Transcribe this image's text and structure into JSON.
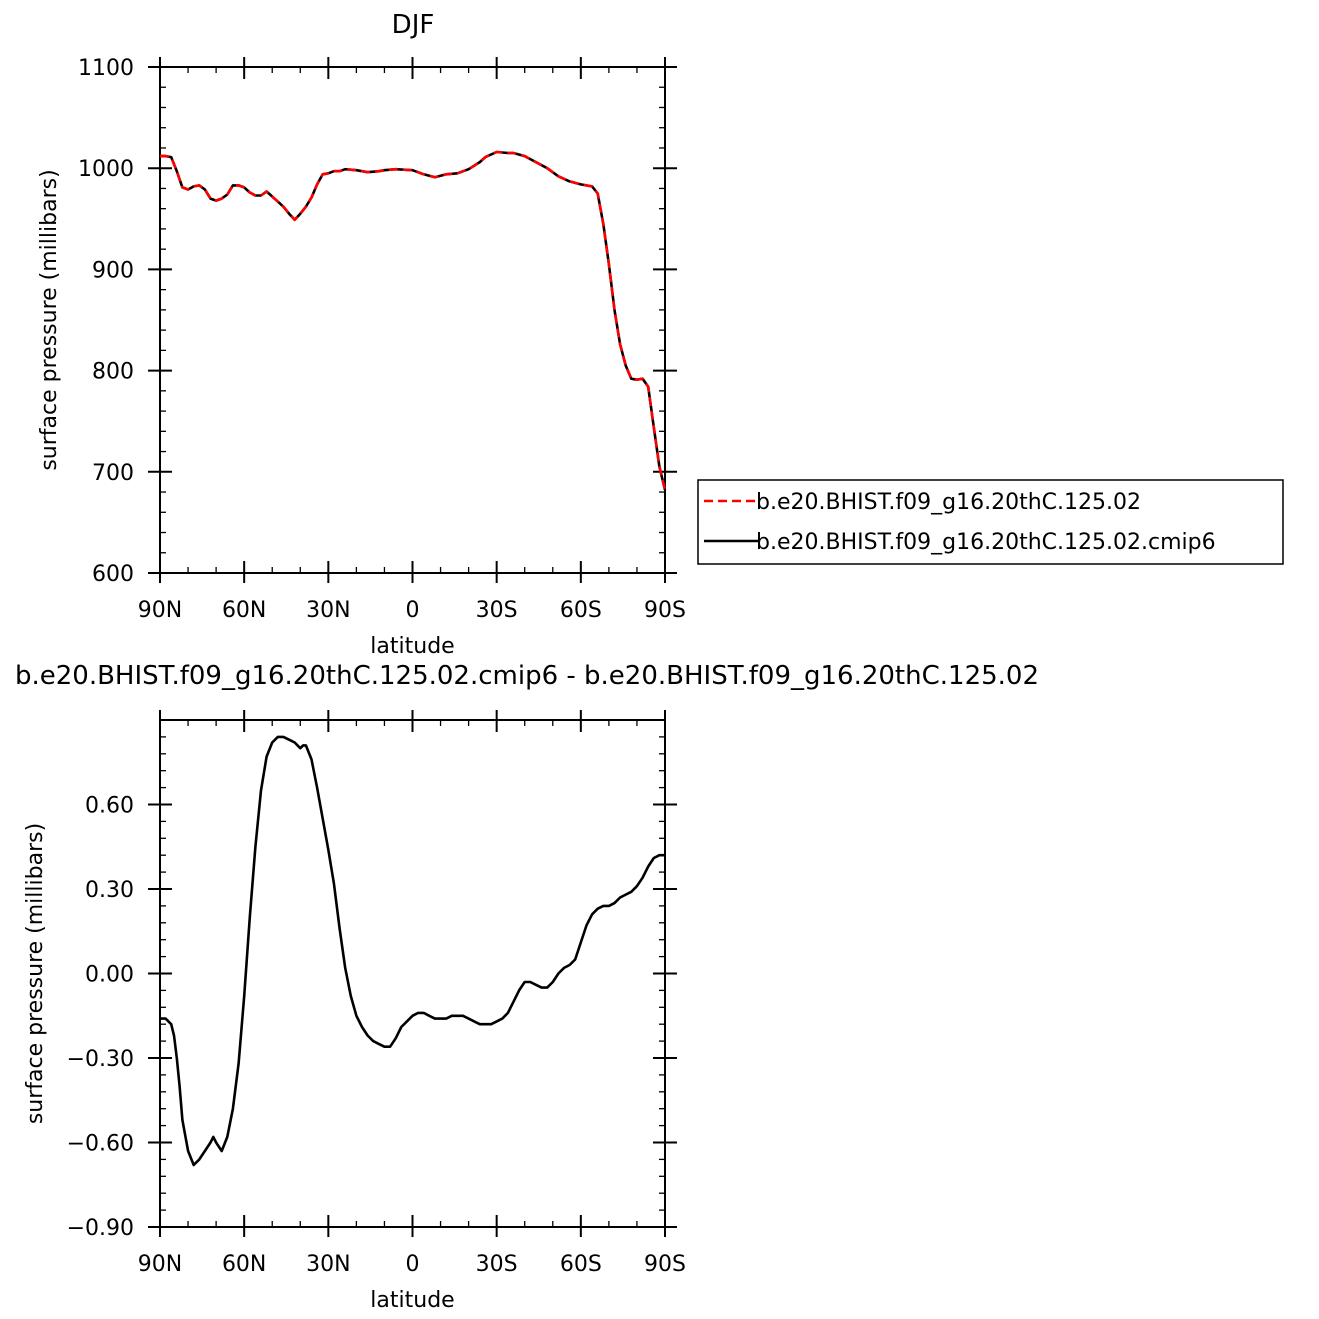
{
  "chart_data": [
    {
      "type": "line",
      "title": "DJF",
      "xlabel": "latitude",
      "ylabel": "surface pressure (millibars)",
      "xlim": [
        90,
        -90
      ],
      "ylim": [
        600,
        1100
      ],
      "xticks": [
        90,
        60,
        30,
        0,
        -30,
        -60,
        -90
      ],
      "xtick_labels": [
        "90N",
        "60N",
        "30N",
        "0",
        "30S",
        "60S",
        "90S"
      ],
      "yticks": [
        600,
        700,
        800,
        900,
        1000,
        1100
      ],
      "ytick_labels": [
        "600",
        "700",
        "800",
        "900",
        "1000",
        "1100"
      ],
      "legend_position": "right",
      "series": [
        {
          "name": "b.e20.BHIST.f09_g16.20thC.125.02",
          "color": "#ff0000",
          "dash": "dashed",
          "x": [
            90,
            88,
            86,
            84,
            82,
            80,
            78,
            76,
            74,
            72,
            70,
            68,
            66,
            64,
            62,
            60,
            58,
            56,
            54,
            52,
            50,
            48,
            46,
            44,
            42,
            40,
            38,
            36,
            34,
            32,
            30,
            28,
            26,
            24,
            20,
            16,
            12,
            10,
            6,
            0,
            -4,
            -8,
            -12,
            -16,
            -20,
            -24,
            -26,
            -30,
            -34,
            -36,
            -40,
            -44,
            -48,
            -52,
            -56,
            -60,
            -64,
            -66,
            -68,
            -70,
            -72,
            -74,
            -76,
            -78,
            -80,
            -82,
            -84,
            -86,
            -88,
            -90
          ],
          "y": [
            1012,
            1012,
            1011,
            997,
            981,
            979,
            982,
            983,
            979,
            970,
            968,
            970,
            974,
            983,
            983,
            981,
            976,
            973,
            973,
            977,
            972,
            967,
            962,
            955,
            949,
            955,
            962,
            971,
            984,
            994,
            995,
            997,
            997,
            999,
            998,
            996,
            997,
            998,
            999,
            998,
            994,
            991,
            994,
            995,
            999,
            1006,
            1011,
            1016,
            1015,
            1015,
            1012,
            1006,
            1000,
            992,
            987,
            984,
            982,
            975,
            945,
            905,
            860,
            826,
            805,
            792,
            791,
            792,
            784,
            744,
            705,
            682
          ]
        },
        {
          "name": "b.e20.BHIST.f09_g16.20thC.125.02.cmip6",
          "color": "#000000",
          "dash": "solid",
          "x": [
            90,
            88,
            86,
            84,
            82,
            80,
            78,
            76,
            74,
            72,
            70,
            68,
            66,
            64,
            62,
            60,
            58,
            56,
            54,
            52,
            50,
            48,
            46,
            44,
            42,
            40,
            38,
            36,
            34,
            32,
            30,
            28,
            26,
            24,
            20,
            16,
            12,
            10,
            6,
            0,
            -4,
            -8,
            -12,
            -16,
            -20,
            -24,
            -26,
            -30,
            -34,
            -36,
            -40,
            -44,
            -48,
            -52,
            -56,
            -60,
            -64,
            -66,
            -68,
            -70,
            -72,
            -74,
            -76,
            -78,
            -80,
            -82,
            -84,
            -86,
            -88,
            -90
          ],
          "y": [
            1012,
            1012,
            1011,
            997,
            981,
            979,
            982,
            983,
            979,
            970,
            968,
            970,
            974,
            983,
            983,
            981,
            976,
            973,
            973,
            977,
            972,
            967,
            962,
            955,
            949,
            955,
            962,
            971,
            984,
            994,
            995,
            997,
            997,
            999,
            998,
            996,
            997,
            998,
            999,
            998,
            994,
            991,
            994,
            995,
            999,
            1006,
            1011,
            1016,
            1015,
            1015,
            1012,
            1006,
            1000,
            992,
            987,
            984,
            982,
            975,
            945,
            905,
            860,
            826,
            805,
            792,
            791,
            792,
            784,
            744,
            705,
            682
          ]
        }
      ]
    },
    {
      "type": "line",
      "title": "b.e20.BHIST.f09_g16.20thC.125.02.cmip6 - b.e20.BHIST.f09_g16.20thC.125.02",
      "xlabel": "latitude",
      "ylabel": "surface pressure (millibars)",
      "xlim": [
        90,
        -90
      ],
      "ylim": [
        -0.9,
        0.9
      ],
      "xticks": [
        90,
        60,
        30,
        0,
        -30,
        -60,
        -90
      ],
      "xtick_labels": [
        "90N",
        "60N",
        "30N",
        "0",
        "30S",
        "60S",
        "90S"
      ],
      "yticks": [
        -0.9,
        -0.6,
        -0.3,
        0.0,
        0.3,
        0.6
      ],
      "ytick_labels": [
        "-0.90",
        "-0.60",
        "-0.30",
        "0.00",
        "0.30",
        "0.60"
      ],
      "series": [
        {
          "color": "#000000",
          "dash": "solid",
          "x": [
            90,
            88,
            86,
            85,
            84,
            83,
            82,
            80,
            78,
            76,
            74,
            72,
            71,
            70,
            68,
            66,
            64,
            62,
            60,
            58,
            56,
            54,
            52,
            50,
            48,
            46,
            44,
            42,
            40,
            39,
            38,
            36,
            34,
            32,
            30,
            28,
            26,
            24,
            22,
            20,
            18,
            16,
            14,
            12,
            10,
            8,
            6,
            4,
            2,
            0,
            -2,
            -4,
            -6,
            -8,
            -10,
            -12,
            -14,
            -16,
            -18,
            -20,
            -22,
            -24,
            -26,
            -28,
            -30,
            -32,
            -34,
            -36,
            -38,
            -40,
            -42,
            -44,
            -46,
            -48,
            -50,
            -52,
            -54,
            -56,
            -58,
            -60,
            -62,
            -64,
            -66,
            -68,
            -70,
            -72,
            -74,
            -76,
            -78,
            -80,
            -82,
            -84,
            -86,
            -88,
            -90
          ],
          "y": [
            -0.16,
            -0.16,
            -0.18,
            -0.22,
            -0.3,
            -0.4,
            -0.52,
            -0.63,
            -0.68,
            -0.66,
            -0.63,
            -0.6,
            -0.58,
            -0.6,
            -0.63,
            -0.58,
            -0.48,
            -0.32,
            -0.08,
            0.2,
            0.45,
            0.65,
            0.77,
            0.82,
            0.84,
            0.84,
            0.83,
            0.82,
            0.8,
            0.81,
            0.81,
            0.76,
            0.66,
            0.55,
            0.44,
            0.32,
            0.16,
            0.02,
            -0.08,
            -0.15,
            -0.19,
            -0.22,
            -0.24,
            -0.25,
            -0.26,
            -0.26,
            -0.23,
            -0.19,
            -0.17,
            -0.15,
            -0.14,
            -0.14,
            -0.15,
            -0.16,
            -0.16,
            -0.16,
            -0.15,
            -0.15,
            -0.15,
            -0.16,
            -0.17,
            -0.18,
            -0.18,
            -0.18,
            -0.17,
            -0.16,
            -0.14,
            -0.1,
            -0.06,
            -0.03,
            -0.03,
            -0.04,
            -0.05,
            -0.05,
            -0.03,
            0.0,
            0.02,
            0.03,
            0.05,
            0.11,
            0.17,
            0.21,
            0.23,
            0.24,
            0.24,
            0.25,
            0.27,
            0.28,
            0.29,
            0.31,
            0.34,
            0.38,
            0.41,
            0.42,
            0.42
          ]
        }
      ]
    }
  ]
}
